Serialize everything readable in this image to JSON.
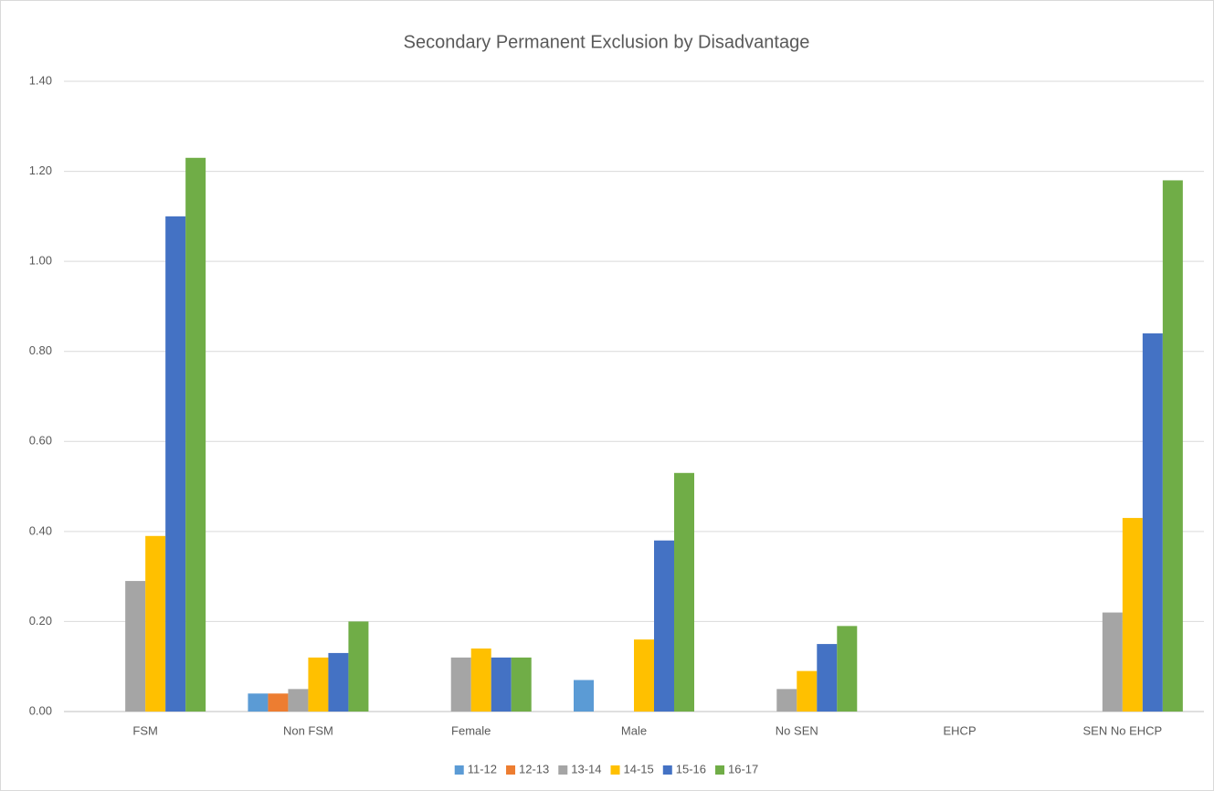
{
  "chart_data": {
    "type": "bar",
    "title": "Secondary Permanent Exclusion by Disadvantage",
    "categories": [
      "FSM",
      "Non FSM",
      "Female",
      "Male",
      "No SEN",
      "EHCP",
      "SEN No EHCP"
    ],
    "series": [
      {
        "name": "11-12",
        "color": "#5b9bd5",
        "values": [
          null,
          0.04,
          null,
          0.07,
          null,
          null,
          null
        ]
      },
      {
        "name": "12-13",
        "color": "#ed7d31",
        "values": [
          null,
          0.04,
          null,
          null,
          null,
          null,
          null
        ]
      },
      {
        "name": "13-14",
        "color": "#a5a5a5",
        "values": [
          0.29,
          0.05,
          0.12,
          null,
          0.05,
          null,
          0.22
        ]
      },
      {
        "name": "14-15",
        "color": "#ffc000",
        "values": [
          0.39,
          0.12,
          0.14,
          0.16,
          0.09,
          null,
          0.43
        ]
      },
      {
        "name": "15-16",
        "color": "#4472c4",
        "values": [
          1.1,
          0.13,
          0.12,
          0.38,
          0.15,
          null,
          0.84
        ]
      },
      {
        "name": "16-17",
        "color": "#70ad47",
        "values": [
          1.23,
          0.2,
          0.12,
          0.53,
          0.19,
          null,
          1.18
        ]
      }
    ],
    "ylim": [
      0,
      1.4
    ],
    "yticks": [
      {
        "value": 0,
        "label": "0.00"
      },
      {
        "value": 0.2,
        "label": "0.20"
      },
      {
        "value": 0.4,
        "label": "0.40"
      },
      {
        "value": 0.6,
        "label": "0.60"
      },
      {
        "value": 0.8,
        "label": "0.80"
      },
      {
        "value": 1.0,
        "label": "1.00"
      },
      {
        "value": 1.2,
        "label": "1.20"
      },
      {
        "value": 1.4,
        "label": "1.40"
      }
    ],
    "grid": true,
    "legend": "bottom"
  }
}
